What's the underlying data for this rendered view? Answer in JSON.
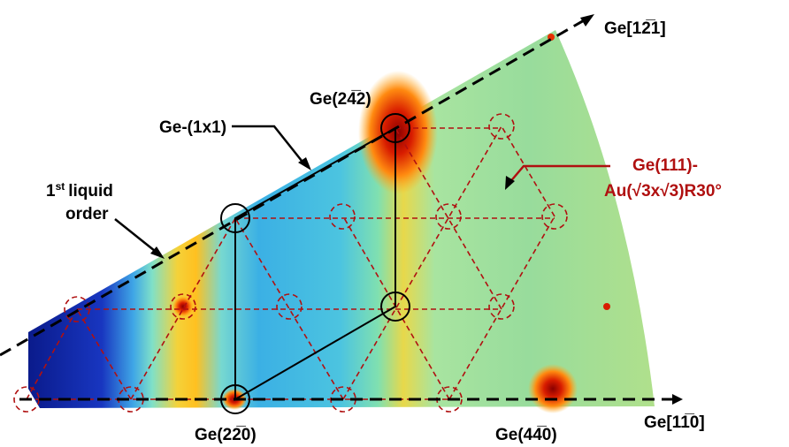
{
  "axes": {
    "upper": "Ge[12̅1]",
    "lower": "Ge[11̅0]"
  },
  "spots": {
    "ge242": "Ge(24̅2)",
    "ge220": "Ge(22̅0)",
    "ge440": "Ge(44̅0)"
  },
  "labels": {
    "ge1x1": "Ge-(1x1)",
    "liquid": {
      "number": "1",
      "suffix": "st",
      "line1": "liquid",
      "line2": "order"
    },
    "reconstruction": {
      "line1": "Ge(111)-",
      "line2": "Au(√3x√3)R30°"
    }
  }
}
